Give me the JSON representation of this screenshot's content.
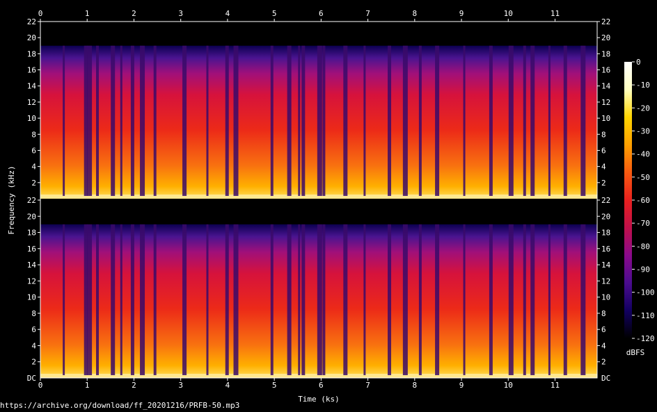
{
  "source_url": "https://archive.org/download/ff_20201216/PRFB-50.mp3",
  "chart_data": {
    "type": "heatmap",
    "channels": [
      "channel-1",
      "channel-2"
    ],
    "xlabel": "Time (ks)",
    "ylabel": "Frequency (kHz)",
    "x_range": [
      0,
      11.9
    ],
    "x_ticks": [
      0,
      1,
      2,
      3,
      4,
      5,
      6,
      7,
      8,
      9,
      10,
      11
    ],
    "y_range_khz": [
      0,
      22
    ],
    "y_ticks": [
      2,
      4,
      6,
      8,
      10,
      12,
      14,
      16,
      18,
      20,
      22
    ],
    "y_bottom_label": "DC",
    "cutoff_khz": 19,
    "colorbar": {
      "label": "dBFS",
      "range": [
        -120,
        0
      ],
      "ticks": [
        "0",
        "-10",
        "-20",
        "-30",
        "-40",
        "-50",
        "-60",
        "-70",
        "-80",
        "-90",
        "-100",
        "-110",
        "-120"
      ]
    },
    "colormap": [
      "#000000",
      "#120060",
      "#4a0c8e",
      "#8a0a8c",
      "#c0104a",
      "#e8201e",
      "#f85a10",
      "#ffa000",
      "#ffd400",
      "#ffffc0",
      "#ffffff"
    ],
    "gaps_ks": [
      0.5,
      0.97,
      1.05,
      1.22,
      1.55,
      1.73,
      1.97,
      2.18,
      2.45,
      3.08,
      3.57,
      3.99,
      4.18,
      4.95,
      5.32,
      5.53,
      5.62,
      5.97,
      6.06,
      6.52,
      6.93,
      7.46,
      7.8,
      8.12,
      8.48,
      9.06,
      9.63,
      10.06,
      10.35,
      10.52,
      10.88,
      11.22,
      11.6
    ]
  }
}
